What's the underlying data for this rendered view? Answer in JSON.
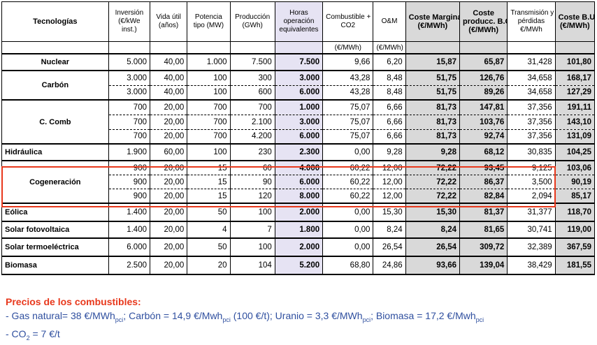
{
  "headers": {
    "tech": "Tecnologías",
    "inv": [
      "Inversión",
      "(€/kWe",
      "inst.)"
    ],
    "vida": [
      "Vida útil",
      "(años)"
    ],
    "pot": [
      "Potencia",
      "tipo (MW)"
    ],
    "prod": [
      "Producción",
      "(GWh)"
    ],
    "horas": [
      "Horas",
      "operación",
      "equivalentes"
    ],
    "comb": [
      "Combustible +",
      "CO2"
    ],
    "om": "O&M",
    "cm": [
      "Coste Marginal",
      "(€/MWh)"
    ],
    "cp": [
      "Coste",
      "producc. B.C.",
      "(€/MWh)"
    ],
    "tr": [
      "Transmisión y",
      "pérdidas",
      "€/MWh"
    ],
    "cbu": [
      "Coste B.U.",
      "(€/MWh)"
    ]
  },
  "units": {
    "comb": "(€/MWh)",
    "om": "(€/MWh)"
  },
  "groups": [
    {
      "name": "Nuclear",
      "rows": [
        [
          "5.000",
          "40,00",
          "1.000",
          "7.500",
          "7.500",
          "9,66",
          "6,20",
          "15,87",
          "65,87",
          "31,428",
          "101,80"
        ]
      ]
    },
    {
      "name": "Carbón",
      "rows": [
        [
          "3.000",
          "40,00",
          "100",
          "300",
          "3.000",
          "43,28",
          "8,48",
          "51,75",
          "126,76",
          "34,658",
          "168,17"
        ],
        [
          "3.000",
          "40,00",
          "100",
          "600",
          "6.000",
          "43,28",
          "8,48",
          "51,75",
          "89,26",
          "34,658",
          "127,29"
        ]
      ]
    },
    {
      "name": "C. Comb",
      "rows": [
        [
          "700",
          "20,00",
          "700",
          "700",
          "1.000",
          "75,07",
          "6,66",
          "81,73",
          "147,81",
          "37,356",
          "191,11"
        ],
        [
          "700",
          "20,00",
          "700",
          "2.100",
          "3.000",
          "75,07",
          "6,66",
          "81,73",
          "103,76",
          "37,356",
          "143,10"
        ],
        [
          "700",
          "20,00",
          "700",
          "4.200",
          "6.000",
          "75,07",
          "6,66",
          "81,73",
          "92,74",
          "37,356",
          "131,09"
        ]
      ]
    },
    {
      "name": "Hidráulica",
      "rows": [
        [
          "1.900",
          "60,00",
          "100",
          "230",
          "2.300",
          "0,00",
          "9,28",
          "9,28",
          "68,12",
          "30,835",
          "104,25"
        ]
      ]
    },
    {
      "name": "Cogeneración",
      "rows": [
        [
          "900",
          "20,00",
          "15",
          "60",
          "4.000",
          "60,22",
          "12,00",
          "72,22",
          "93,45",
          "9,125",
          "103,06"
        ],
        [
          "900",
          "20,00",
          "15",
          "90",
          "6.000",
          "60,22",
          "12,00",
          "72,22",
          "86,37",
          "3,500",
          "90,19"
        ],
        [
          "900",
          "20,00",
          "15",
          "120",
          "8.000",
          "60,22",
          "12,00",
          "72,22",
          "82,84",
          "2,094",
          "85,17"
        ]
      ]
    },
    {
      "name": "Eólica",
      "rows": [
        [
          "1.400",
          "20,00",
          "50",
          "100",
          "2.000",
          "0,00",
          "15,30",
          "15,30",
          "81,37",
          "31,377",
          "118,70"
        ]
      ]
    },
    {
      "name": "Solar fotovoltaica",
      "rows": [
        [
          "1.400",
          "20,00",
          "4",
          "7",
          "1.800",
          "0,00",
          "8,24",
          "8,24",
          "81,65",
          "30,741",
          "119,00"
        ]
      ]
    },
    {
      "name": "Solar termoeléctrica",
      "rows": [
        [
          "6.000",
          "20,00",
          "50",
          "100",
          "2.000",
          "0,00",
          "26,54",
          "26,54",
          "309,72",
          "32,389",
          "367,59"
        ]
      ]
    },
    {
      "name": "Biomasa",
      "rows": [
        [
          "2.500",
          "20,00",
          "20",
          "104",
          "5.200",
          "68,80",
          "24,86",
          "93,66",
          "139,04",
          "38,429",
          "181,55"
        ]
      ]
    }
  ],
  "notes": {
    "title": "Precios de los combustibles:",
    "gas_pre": "- Gas natural= 38 €/MWh",
    "sub1": "pci",
    "carbon_pre": "; Carbón = 14,9 €/Mwh",
    "sub2": "pci",
    "carbon_post": " (100 €/t); Uranio = 3,3 €/MWh",
    "sub3": "pci",
    "bio_pre": "; Biomasa = 17,2 €/Mwh",
    "sub4": "pci",
    "co2_pre": "- CO",
    "co2_sub": "2",
    "co2_post": " = 7 €/t"
  }
}
